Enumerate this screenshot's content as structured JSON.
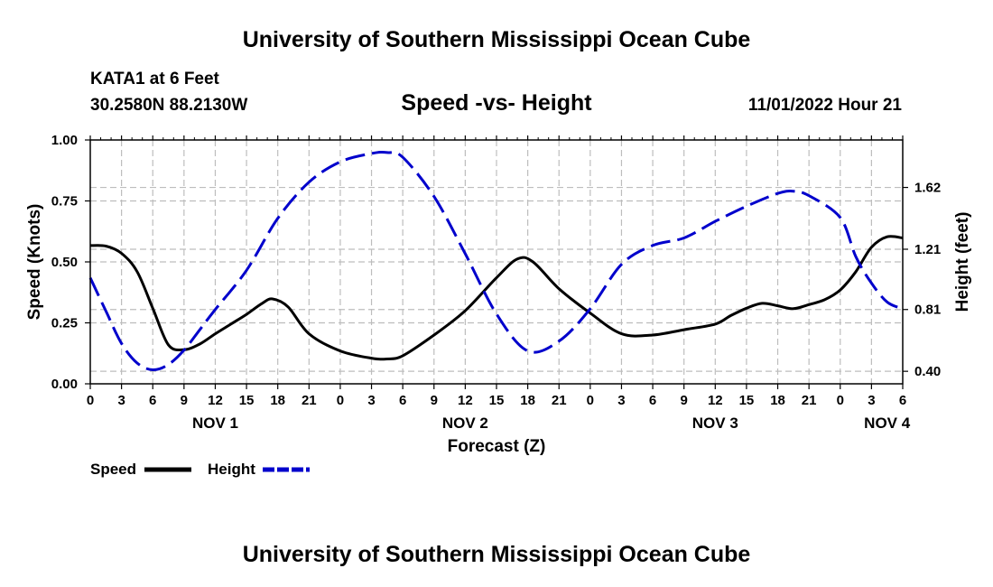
{
  "header": {
    "title": "University of Southern Mississippi Ocean Cube",
    "station": "KATA1 at 6 Feet",
    "coordinates": "30.2580N  88.2130W",
    "subtitle": "Speed -vs- Height",
    "datetime": "11/01/2022 Hour 21"
  },
  "footer": {
    "title": "University of Southern Mississippi Ocean Cube"
  },
  "chart_data": {
    "type": "line",
    "title": "Speed -vs- Height",
    "xlabel": "Forecast (Z)",
    "ylabel": "Speed (Knots)",
    "y2label": "Height (feet)",
    "x_range_hours": [
      0,
      78
    ],
    "x_ticks": {
      "hours": [
        0,
        3,
        6,
        9,
        12,
        15,
        18,
        21,
        24,
        27,
        30,
        33,
        36,
        39,
        42,
        45,
        48,
        51,
        54,
        57,
        60,
        63,
        66,
        69,
        72,
        75,
        78
      ],
      "labels": [
        "0",
        "3",
        "6",
        "9",
        "12",
        "15",
        "18",
        "21",
        "0",
        "3",
        "6",
        "9",
        "12",
        "15",
        "18",
        "21",
        "0",
        "3",
        "6",
        "9",
        "12",
        "15",
        "18",
        "21",
        "0",
        "3",
        "6"
      ]
    },
    "day_labels": [
      {
        "hour": 12,
        "label": "NOV 1"
      },
      {
        "hour": 36,
        "label": "NOV 2"
      },
      {
        "hour": 60,
        "label": "NOV 3"
      },
      {
        "hour": 76.5,
        "label": "NOV 4"
      }
    ],
    "ylim": [
      0,
      1
    ],
    "y_ticks": [
      0,
      0.25,
      0.5,
      0.75,
      1.0
    ],
    "y_tick_labels": [
      "0.00",
      "0.25",
      "0.50",
      "0.75",
      "1.00"
    ],
    "y2lim": [
      0.317,
      1.935
    ],
    "y2_ticks": [
      0.4,
      0.81,
      1.21,
      1.62
    ],
    "y2_tick_labels": [
      "0.40",
      "0.81",
      "1.21",
      "1.62"
    ],
    "grid": true,
    "legend": {
      "position": "bottom-left",
      "entries": [
        {
          "label": "Speed",
          "color": "#000000",
          "style": "solid"
        },
        {
          "label": "Height",
          "color": "#0000cc",
          "style": "dashed"
        }
      ]
    },
    "series": [
      {
        "name": "Speed",
        "axis": "left",
        "color": "#000000",
        "style": "solid",
        "x": [
          0,
          1.5,
          3,
          4.5,
          6,
          7.5,
          9,
          10.5,
          12,
          13.5,
          15,
          16.5,
          17.5,
          19,
          21,
          24,
          27,
          28.5,
          30,
          33,
          36,
          39,
          41,
          42.5,
          45,
          48,
          51,
          54,
          57,
          60,
          61.5,
          63,
          64.5,
          66,
          67.5,
          69,
          70.5,
          72,
          73.5,
          75,
          76.5,
          78
        ],
        "values": [
          0.567,
          0.565,
          0.535,
          0.46,
          0.31,
          0.16,
          0.14,
          0.163,
          0.205,
          0.245,
          0.285,
          0.33,
          0.348,
          0.315,
          0.205,
          0.135,
          0.105,
          0.102,
          0.115,
          0.2,
          0.3,
          0.435,
          0.512,
          0.5,
          0.39,
          0.29,
          0.205,
          0.2,
          0.222,
          0.245,
          0.28,
          0.31,
          0.33,
          0.32,
          0.308,
          0.325,
          0.345,
          0.385,
          0.46,
          0.56,
          0.603,
          0.598
        ]
      },
      {
        "name": "Height",
        "axis": "right",
        "color": "#0000cc",
        "style": "dashed",
        "x": [
          0,
          1.5,
          3,
          4.5,
          6,
          7.5,
          9,
          10.5,
          12,
          15,
          18,
          21,
          24,
          27,
          28.5,
          30,
          33,
          36,
          39,
          42,
          45,
          48,
          51,
          54,
          57,
          60,
          63,
          66,
          67.5,
          69,
          72,
          73.5,
          75,
          76.5,
          78
        ],
        "values": [
          1.02,
          0.8,
          0.585,
          0.455,
          0.41,
          0.445,
          0.54,
          0.675,
          0.81,
          1.07,
          1.415,
          1.655,
          1.79,
          1.845,
          1.852,
          1.82,
          1.56,
          1.18,
          0.78,
          0.535,
          0.6,
          0.815,
          1.11,
          1.235,
          1.285,
          1.395,
          1.495,
          1.58,
          1.595,
          1.565,
          1.42,
          1.16,
          0.985,
          0.86,
          0.815
        ]
      }
    ]
  }
}
